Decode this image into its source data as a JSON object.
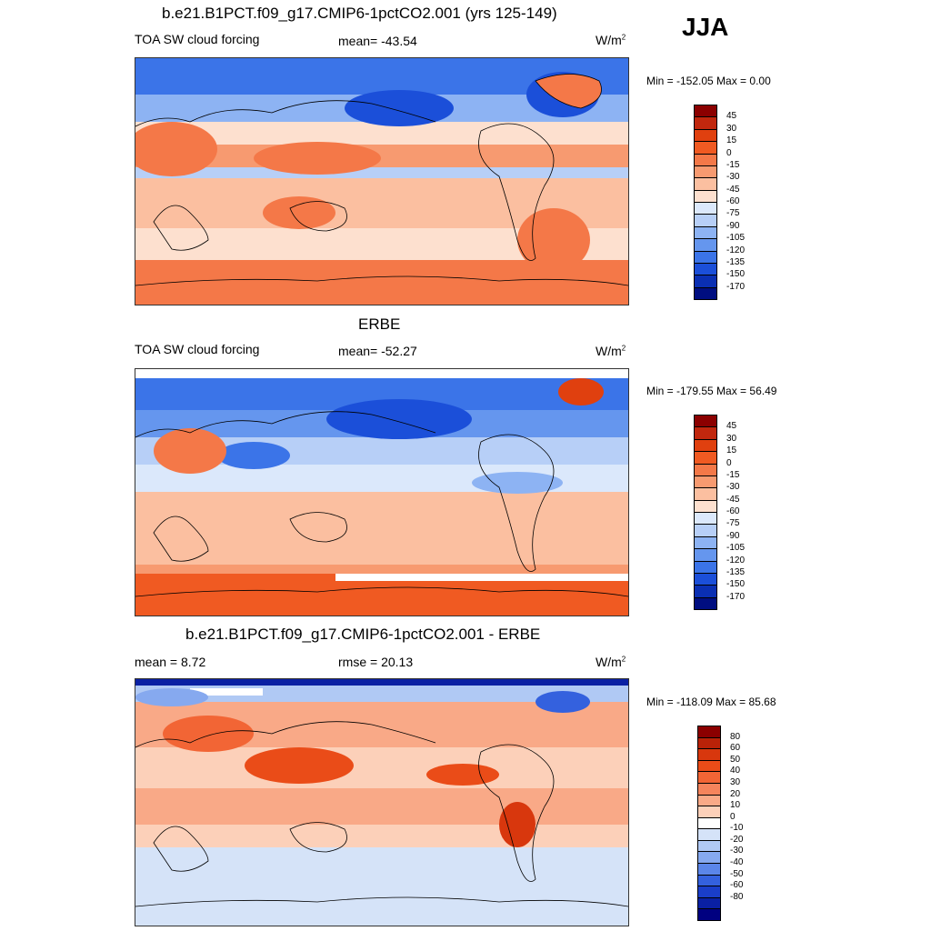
{
  "season": "JJA",
  "panels": [
    {
      "title": "b.e21.B1PCT.f09_g17.CMIP6-1pctCO2.001 (yrs 125-149)",
      "left_label": "TOA SW cloud forcing",
      "center_label": "mean= -43.54",
      "units_base": "W/m",
      "units_exp": "2",
      "range_text": "Min = -152.05 Max =   0.00",
      "colorbar": {
        "colors": [
          "#8b0000",
          "#c1270e",
          "#e0400f",
          "#f05a22",
          "#f47848",
          "#f79a70",
          "#fbbfa0",
          "#fde0cf",
          "#dbe8fb",
          "#b7cff7",
          "#8db3f3",
          "#6596ee",
          "#3b74e8",
          "#1b4fd9",
          "#0a2fb3",
          "#000e80"
        ],
        "ticks": [
          "45",
          "30",
          "15",
          "0",
          "-15",
          "-30",
          "-45",
          "-60",
          "-75",
          "-90",
          "-105",
          "-120",
          "-135",
          "-150",
          "-170"
        ]
      }
    },
    {
      "title": "ERBE",
      "left_label": "TOA SW cloud forcing",
      "center_label": "mean= -52.27",
      "units_base": "W/m",
      "units_exp": "2",
      "range_text": "Min = -179.55 Max =  56.49",
      "colorbar": {
        "colors": [
          "#8b0000",
          "#c1270e",
          "#e0400f",
          "#f05a22",
          "#f47848",
          "#f79a70",
          "#fbbfa0",
          "#fde0cf",
          "#dbe8fb",
          "#b7cff7",
          "#8db3f3",
          "#6596ee",
          "#3b74e8",
          "#1b4fd9",
          "#0a2fb3",
          "#000e80"
        ],
        "ticks": [
          "45",
          "30",
          "15",
          "0",
          "-15",
          "-30",
          "-45",
          "-60",
          "-75",
          "-90",
          "-105",
          "-120",
          "-135",
          "-150",
          "-170"
        ]
      }
    },
    {
      "title": "b.e21.B1PCT.f09_g17.CMIP6-1pctCO2.001 - ERBE",
      "left_label": "mean =   8.72",
      "center_label": "rmse =  20.13",
      "units_base": "W/m",
      "units_exp": "2",
      "range_text": "Min = -118.09 Max =  85.68",
      "colorbar": {
        "colors": [
          "#8b0000",
          "#b92208",
          "#d8370d",
          "#ea4c18",
          "#f26535",
          "#f5845c",
          "#f9a987",
          "#fcd0b9",
          "#ffffff",
          "#d5e3f8",
          "#b0c9f4",
          "#86a9ef",
          "#5b86e9",
          "#3461de",
          "#1a3ec9",
          "#0a20a3",
          "#000080"
        ],
        "ticks": [
          "80",
          "60",
          "50",
          "40",
          "30",
          "20",
          "10",
          "0",
          "-10",
          "-20",
          "-30",
          "-40",
          "-50",
          "-60",
          "-80"
        ]
      }
    }
  ],
  "chart_data": [
    {
      "type": "heatmap",
      "title": "b.e21.B1PCT.f09_g17.CMIP6-1pctCO2.001 (yrs 125-149)",
      "variable": "TOA SW cloud forcing",
      "units": "W/m2",
      "season": "JJA",
      "mean": -43.54,
      "min": -152.05,
      "max": 0.0,
      "levels": [
        45,
        30,
        15,
        0,
        -15,
        -30,
        -45,
        -60,
        -75,
        -90,
        -105,
        -120,
        -135,
        -150,
        -170
      ]
    },
    {
      "type": "heatmap",
      "title": "ERBE",
      "variable": "TOA SW cloud forcing",
      "units": "W/m2",
      "season": "JJA",
      "mean": -52.27,
      "min": -179.55,
      "max": 56.49,
      "levels": [
        45,
        30,
        15,
        0,
        -15,
        -30,
        -45,
        -60,
        -75,
        -90,
        -105,
        -120,
        -135,
        -150,
        -170
      ]
    },
    {
      "type": "heatmap",
      "title": "b.e21.B1PCT.f09_g17.CMIP6-1pctCO2.001 - ERBE",
      "units": "W/m2",
      "season": "JJA",
      "mean": 8.72,
      "rmse": 20.13,
      "min": -118.09,
      "max": 85.68,
      "levels": [
        80,
        60,
        50,
        40,
        30,
        20,
        10,
        0,
        -10,
        -20,
        -30,
        -40,
        -50,
        -60,
        -80
      ]
    }
  ]
}
